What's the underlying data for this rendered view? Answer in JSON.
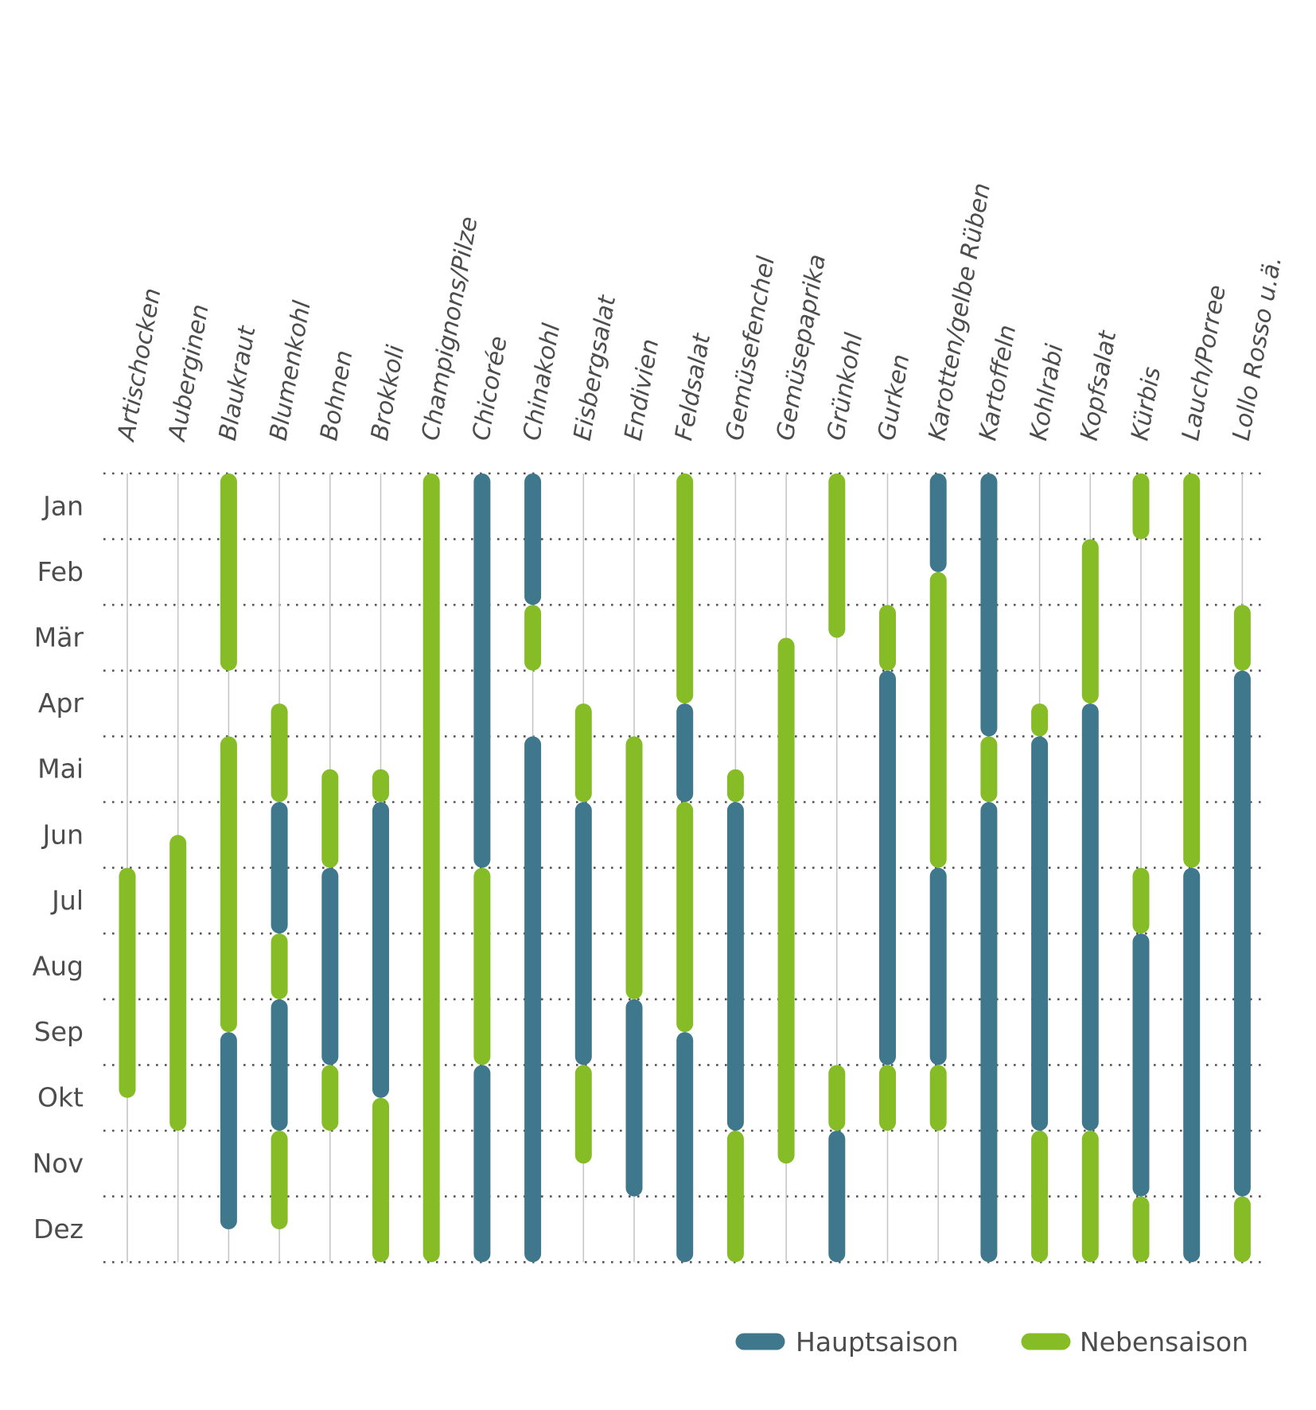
{
  "chart_data": {
    "type": "range-bar",
    "title": "",
    "months": [
      "Jan",
      "Feb",
      "Mär",
      "Apr",
      "Mai",
      "Jun",
      "Jul",
      "Aug",
      "Sep",
      "Okt",
      "Nov",
      "Dez"
    ],
    "value_unit": "months from start of January (0 = Jan start, 12 = Dez end)",
    "legend": [
      {
        "key": "H",
        "label": "Hauptsaison",
        "color": "#3f788c"
      },
      {
        "key": "N",
        "label": "Nebensaison",
        "color": "#86bc25"
      }
    ],
    "legend_position": "bottom-right",
    "grid": {
      "horizontal": "dotted",
      "vertical": "solid"
    },
    "colors": {
      "text": "#4d4d4d",
      "grid_dots": "#555555",
      "vertical_line": "#c4c4c4",
      "background": "#ffffff"
    },
    "vegetables": [
      {
        "name": "Artischocken",
        "segments": [
          [
            "N",
            6.0,
            9.5
          ]
        ]
      },
      {
        "name": "Auberginen",
        "segments": [
          [
            "N",
            5.5,
            10.0
          ]
        ]
      },
      {
        "name": "Blaukraut",
        "segments": [
          [
            "N",
            0,
            3.0
          ],
          [
            "N",
            4.0,
            8.5
          ],
          [
            "H",
            8.5,
            11.5
          ]
        ]
      },
      {
        "name": "Blumenkohl",
        "segments": [
          [
            "N",
            3.5,
            5.0
          ],
          [
            "H",
            5.0,
            7.0
          ],
          [
            "N",
            7.0,
            8.0
          ],
          [
            "H",
            8.0,
            10.0
          ],
          [
            "N",
            10.0,
            11.5
          ]
        ]
      },
      {
        "name": "Bohnen",
        "segments": [
          [
            "N",
            4.5,
            6.0
          ],
          [
            "H",
            6.0,
            9.0
          ],
          [
            "N",
            9.0,
            10.0
          ]
        ]
      },
      {
        "name": "Brokkoli",
        "segments": [
          [
            "N",
            4.5,
            5.0
          ],
          [
            "H",
            5.0,
            9.5
          ],
          [
            "N",
            9.5,
            12
          ]
        ]
      },
      {
        "name": "Champignons/Pilze",
        "segments": [
          [
            "N",
            0,
            12
          ]
        ]
      },
      {
        "name": "Chicorée",
        "segments": [
          [
            "H",
            0,
            6.0
          ],
          [
            "N",
            6.0,
            9.0
          ],
          [
            "H",
            9.0,
            12
          ]
        ]
      },
      {
        "name": "Chinakohl",
        "segments": [
          [
            "H",
            0,
            2.0
          ],
          [
            "N",
            2.0,
            3.0
          ],
          [
            "H",
            4.0,
            12
          ]
        ]
      },
      {
        "name": "Eisbergsalat",
        "segments": [
          [
            "N",
            3.5,
            5.0
          ],
          [
            "H",
            5.0,
            9.0
          ],
          [
            "N",
            9.0,
            10.5
          ]
        ]
      },
      {
        "name": "Endivien",
        "segments": [
          [
            "N",
            4.0,
            8.0
          ],
          [
            "H",
            8.0,
            11.0
          ]
        ]
      },
      {
        "name": "Feldsalat",
        "segments": [
          [
            "N",
            0,
            3.5
          ],
          [
            "H",
            3.5,
            5.0
          ],
          [
            "N",
            5.0,
            8.5
          ],
          [
            "H",
            8.5,
            12
          ]
        ]
      },
      {
        "name": "Gemüsefenchel",
        "segments": [
          [
            "N",
            4.5,
            5.0
          ],
          [
            "H",
            5.0,
            10.0
          ],
          [
            "N",
            10.0,
            12
          ]
        ]
      },
      {
        "name": "Gemüsepaprika",
        "segments": [
          [
            "N",
            2.5,
            10.5
          ]
        ]
      },
      {
        "name": "Grünkohl",
        "segments": [
          [
            "N",
            0,
            2.5
          ],
          [
            "N",
            9.0,
            10.0
          ],
          [
            "H",
            10.0,
            12
          ]
        ]
      },
      {
        "name": "Gurken",
        "segments": [
          [
            "N",
            2.0,
            3.0
          ],
          [
            "H",
            3.0,
            9.0
          ],
          [
            "N",
            9.0,
            10.0
          ]
        ]
      },
      {
        "name": "Karotten/gelbe Rüben",
        "segments": [
          [
            "H",
            0,
            1.5
          ],
          [
            "N",
            1.5,
            6.0
          ],
          [
            "H",
            6.0,
            9.0
          ],
          [
            "N",
            9.0,
            10.0
          ]
        ]
      },
      {
        "name": "Kartoffeln",
        "segments": [
          [
            "H",
            0,
            4.0
          ],
          [
            "N",
            4.0,
            5.0
          ],
          [
            "H",
            5.0,
            12
          ]
        ]
      },
      {
        "name": "Kohlrabi",
        "segments": [
          [
            "N",
            3.5,
            4.0
          ],
          [
            "H",
            4.0,
            10.0
          ],
          [
            "N",
            10.0,
            12
          ]
        ]
      },
      {
        "name": "Kopfsalat",
        "segments": [
          [
            "N",
            1.0,
            3.5
          ],
          [
            "H",
            3.5,
            10.0
          ],
          [
            "N",
            10.0,
            12
          ]
        ]
      },
      {
        "name": "Kürbis",
        "segments": [
          [
            "N",
            0,
            1.0
          ],
          [
            "N",
            6.0,
            7.0
          ],
          [
            "H",
            7.0,
            11.0
          ],
          [
            "N",
            11.0,
            12
          ]
        ]
      },
      {
        "name": "Lauch/Porree",
        "segments": [
          [
            "N",
            0,
            6.0
          ],
          [
            "H",
            6.0,
            12
          ]
        ]
      },
      {
        "name": "Lollo Rosso u.ä.",
        "segments": [
          [
            "N",
            2.0,
            3.0
          ],
          [
            "H",
            3.0,
            11.0
          ],
          [
            "N",
            11.0,
            12
          ]
        ]
      }
    ]
  }
}
